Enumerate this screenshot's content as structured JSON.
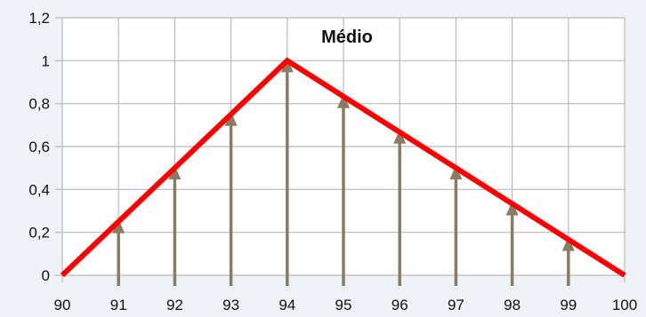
{
  "chart_data": {
    "type": "line",
    "title": "Médio",
    "xlabel": "",
    "ylabel": "",
    "x_ticks": [
      "90",
      "91",
      "92",
      "93",
      "94",
      "95",
      "96",
      "97",
      "98",
      "99",
      "100"
    ],
    "y_ticks": [
      "0",
      "0,2",
      "0,4",
      "0,6",
      "0,8",
      "1",
      "1,2"
    ],
    "xlim": [
      90,
      100
    ],
    "ylim": [
      0,
      1.2
    ],
    "grid": true,
    "series": [
      {
        "x": [
          90,
          94,
          100
        ],
        "y": [
          0,
          1,
          0
        ],
        "color": "#ff0000"
      }
    ],
    "stems": {
      "x": [
        91,
        92,
        93,
        94,
        95,
        96,
        97,
        98,
        99
      ],
      "y": [
        0.25,
        0.5,
        0.75,
        1.0,
        0.833,
        0.667,
        0.5,
        0.333,
        0.167
      ],
      "color": "#8c7b63"
    },
    "colors": {
      "background": "#eef1f6",
      "plot_background": "#ffffff",
      "grid": "#b9b9b9"
    }
  }
}
